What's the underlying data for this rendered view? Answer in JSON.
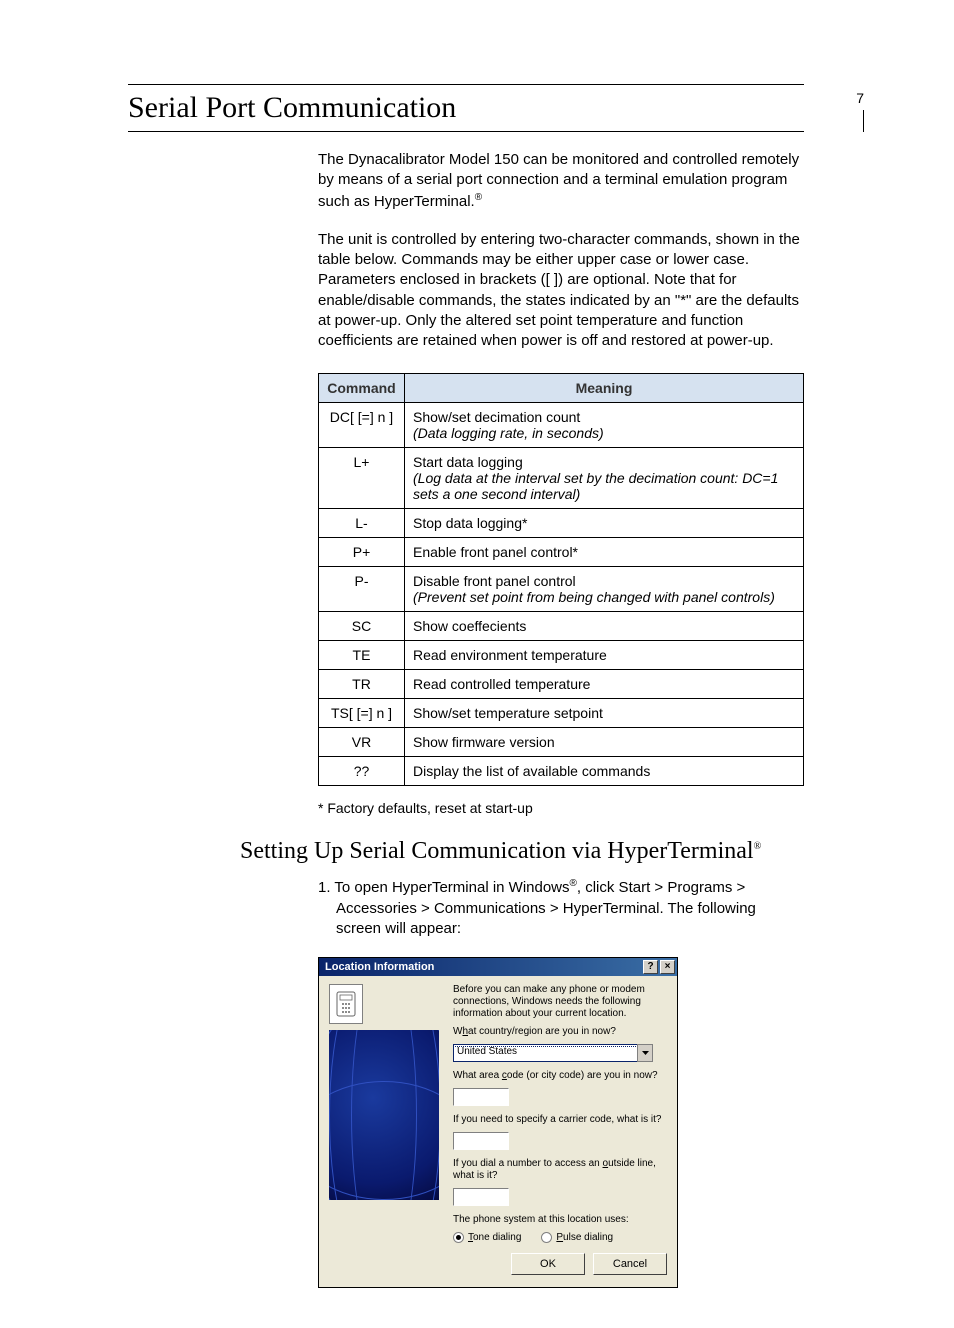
{
  "page_number": "7",
  "heading": "Serial Port Communication",
  "intro1_a": "The Dynacalibrator Model 150 can be monitored and controlled remotely by means of a serial port connection and a terminal emulation program such as HyperTerminal.",
  "intro1_sup": "®",
  "intro2": "The unit is controlled by entering two-character commands, shown in the table below.  Commands may be either upper case or lower case.  Parameters enclosed in brackets ([  ]) are optional.  Note that for enable/disable commands, the states indicated by an \"*\" are the defaults at power-up.  Only the altered set point temperature and function coefficients are retained when power is off and restored at power-up.",
  "table": {
    "header_bg": "#d6e2f0",
    "columns": [
      "Command",
      "Meaning"
    ],
    "rows": [
      {
        "cmd": "DC[ [=] n ]",
        "m1": "Show/set decimation count",
        "m2": "(Data logging rate, in seconds)"
      },
      {
        "cmd": "L+",
        "m1": "Start data logging",
        "m2": "(Log data at the interval set by the decimation count: DC=1 sets a one second interval)"
      },
      {
        "cmd": "L-",
        "m1": "Stop data logging*",
        "m2": ""
      },
      {
        "cmd": "P+",
        "m1": "Enable front panel control*",
        "m2": ""
      },
      {
        "cmd": "P-",
        "m1": "Disable front panel control",
        "m2": "(Prevent set point from being changed with panel controls)"
      },
      {
        "cmd": "SC",
        "m1": "Show coeffecients",
        "m2": ""
      },
      {
        "cmd": "TE",
        "m1": "Read environment temperature",
        "m2": ""
      },
      {
        "cmd": "TR",
        "m1": "Read controlled temperature",
        "m2": ""
      },
      {
        "cmd": "TS[ [=] n ]",
        "m1": "Show/set temperature setpoint",
        "m2": ""
      },
      {
        "cmd": "VR",
        "m1": "Show firmware version",
        "m2": ""
      },
      {
        "cmd": "??",
        "m1": "Display the list of available commands",
        "m2": ""
      }
    ]
  },
  "footnote": "* Factory defaults, reset at start-up",
  "subheading": "Setting Up Serial Communication via HyperTerminal",
  "subheading_sup": "®",
  "step1_a": "1. To open HyperTerminal in Windows",
  "step1_sup": "®",
  "step1_b": ", click Start > Programs > Accessories > Communications > HyperTerminal.  The following screen will appear:",
  "dialog": {
    "title": "Location Information",
    "help_btn": "?",
    "close_btn": "×",
    "text1": "Before you can make any phone or modem connections, Windows needs the following information about your current location.",
    "label_country_pre": "W",
    "label_country_u": "h",
    "label_country_post": "at country/region are you in now?",
    "country_value": "United States",
    "label_area_pre": "What area ",
    "label_area_u": "c",
    "label_area_post": "ode (or city code) are you in now?",
    "label_carrier": "If you need to specify a carrier code, what is it?",
    "label_outside_pre": "If you dial a number to access an ",
    "label_outside_u": "o",
    "label_outside_post": "utside line, what is it?",
    "label_system": "The phone system at this location uses:",
    "radio_tone_u": "T",
    "radio_tone": "one dialing",
    "radio_pulse_u": "P",
    "radio_pulse": "ulse dialing",
    "ok": "OK",
    "cancel": "Cancel"
  }
}
